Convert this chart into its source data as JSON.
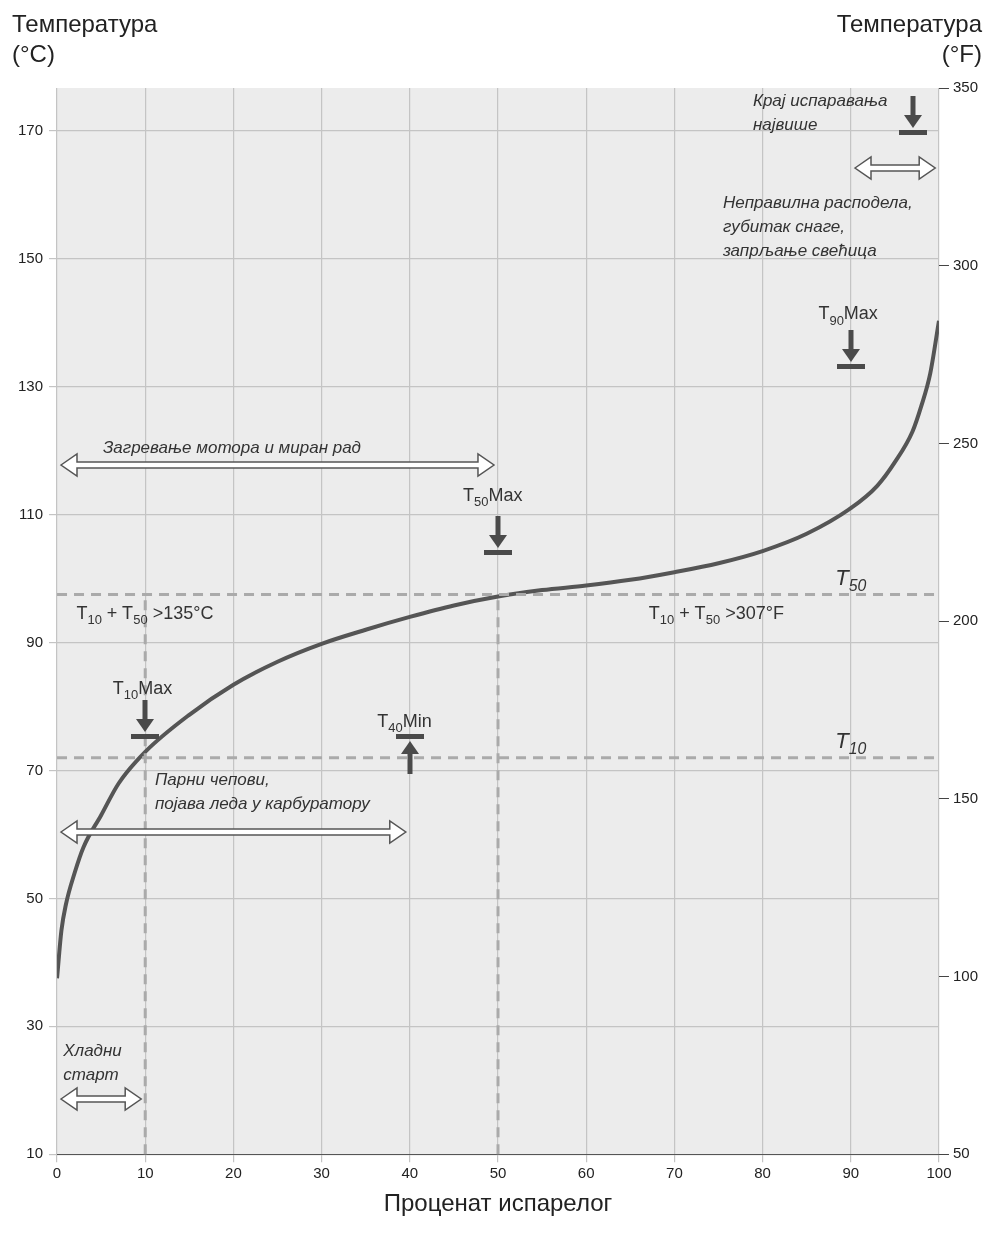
{
  "chart_data": {
    "type": "line",
    "xlabel": "Проценат испарелог",
    "ylabel": "Температура\n(°C)",
    "y2label": "Температура\n(°F)",
    "xlim": [
      0,
      100
    ],
    "xticks": [
      0,
      10,
      20,
      30,
      40,
      50,
      60,
      70,
      80,
      90,
      100
    ],
    "ylim": [
      10,
      176.7
    ],
    "yticks": [
      10,
      30,
      50,
      70,
      90,
      110,
      130,
      150,
      170
    ],
    "y2lim": [
      50,
      350
    ],
    "y2ticks": [
      50,
      100,
      150,
      200,
      250,
      300,
      350
    ],
    "grid": true,
    "legend": false,
    "marker": "none",
    "line_style": "solid",
    "series": [
      {
        "color": "#555555",
        "x": [
          0,
          0.5,
          1,
          2,
          3,
          5,
          7,
          10,
          15,
          20,
          25,
          30,
          35,
          40,
          45,
          50,
          55,
          60,
          65,
          70,
          75,
          80,
          85,
          90,
          93,
          95,
          97,
          98,
          99,
          100
        ],
        "values": [
          37.5,
          45,
          49,
          54,
          58,
          63,
          68,
          72.9,
          78.7,
          83.4,
          87,
          89.8,
          92,
          94,
          95.8,
          97.2,
          98.2,
          98.9,
          99.8,
          101,
          102.4,
          104.3,
          107,
          111,
          114.5,
          118.2,
          123,
          127,
          132,
          140.3
        ]
      }
    ],
    "ref_lines": [
      {
        "axis": "y",
        "value": 72,
        "label": "T$_{10}$",
        "color": "#aaaaaa",
        "line_style": "dashed"
      },
      {
        "axis": "y",
        "value": 97.5,
        "label": "T$_{50}$",
        "color": "#aaaaaa",
        "line_style": "dashed"
      },
      {
        "axis": "x",
        "value": 10,
        "color": "#aaaaaa",
        "line_style": "dashed"
      },
      {
        "axis": "x",
        "value": 50,
        "color": "#aaaaaa",
        "line_style": "dashed"
      }
    ],
    "annotations": [
      "T$_{10}$ + T$_{50}$ >135°C",
      "T$_{10}$ + T$_{50}$ >307°F",
      "T$_{10}$Max",
      "T$_{40}$Min",
      "T$_{50}$Max",
      "T$_{90}$Max",
      "Крај испаравања\nнајвише",
      "Хладни\nстарт",
      "Парни чепови,\nпојава леда у карбуратору",
      "Загревање мотора и миран рад",
      "Неправилна расподела,\nгубитак снаге,\nзапрљање свећица"
    ]
  }
}
